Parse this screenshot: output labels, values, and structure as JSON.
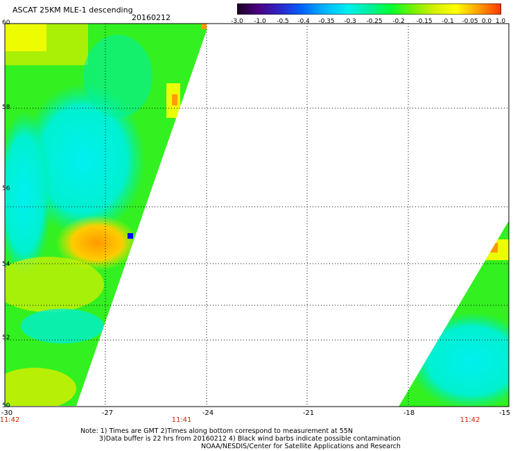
{
  "header": {
    "title": "ASCAT 25KM MLE-1 descending",
    "date": "20160212"
  },
  "colorbar": {
    "stops": [
      "#1a0022",
      "#4a0080",
      "#2a2acc",
      "#0066ff",
      "#00b4ff",
      "#00f0f0",
      "#00f0a0",
      "#00ff33",
      "#7af000",
      "#d8f000",
      "#ffff00",
      "#ff9900",
      "#ff3300"
    ],
    "labels": [
      "-3.0",
      "-1.0",
      "-0.5",
      "-0.4",
      "-0.35",
      "-0.3",
      "-0.25",
      "-0.2",
      "-0.15",
      "-0.1",
      "-0.05",
      "0.0",
      "1.0"
    ]
  },
  "axes": {
    "y_labels": [
      "60",
      "58",
      "56",
      "54",
      "52",
      "50"
    ],
    "x_labels": [
      "-30",
      "-27",
      "-24",
      "-21",
      "-18",
      "-15"
    ],
    "times": [
      "11:42",
      "11:41",
      "11:42"
    ]
  },
  "notes": {
    "line1": "Note: 1) Times are GMT 2)Times along bottom correspond to measurement at 55N",
    "line2": "3)Data buffer is 22 hrs from 20160212 4) Black wind barbs indicate possible contamination",
    "line3": "NOAA/NESDIS/Center for Satellite Applications and Research"
  }
}
